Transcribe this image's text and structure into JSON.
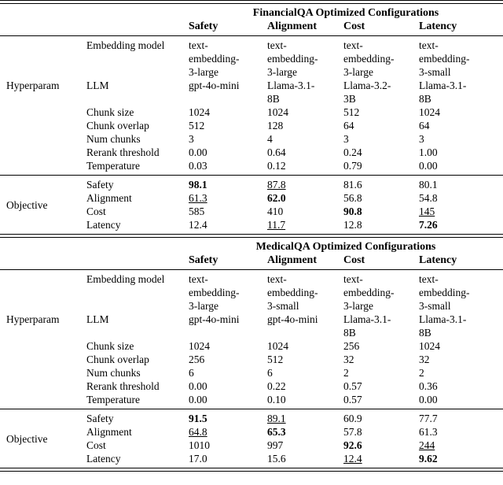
{
  "tables": [
    {
      "title": "FinancialQA Optimized Configurations",
      "columns": [
        "Safety",
        "Alignment",
        "Cost",
        "Latency"
      ],
      "group_labels": {
        "hyperparam": "Hyperparam",
        "objective": "Objective"
      },
      "hyperparams": [
        {
          "name": "Embedding model",
          "values": [
            "text-\nembedding-\n3-large",
            "text-\nembedding-\n3-large",
            "text-\nembedding-\n3-large",
            "text-\nembedding-\n3-small"
          ]
        },
        {
          "name": "LLM",
          "values": [
            "gpt-4o-mini",
            "Llama-3.1-\n8B",
            "Llama-3.2-\n3B",
            "Llama-3.1-\n8B"
          ]
        },
        {
          "name": "Chunk size",
          "values": [
            "1024",
            "1024",
            "512",
            "1024"
          ]
        },
        {
          "name": "Chunk overlap",
          "values": [
            "512",
            "128",
            "64",
            "64"
          ]
        },
        {
          "name": "Num chunks",
          "values": [
            "3",
            "4",
            "3",
            "3"
          ]
        },
        {
          "name": "Rerank threshold",
          "values": [
            "0.00",
            "0.64",
            "0.24",
            "1.00"
          ]
        },
        {
          "name": "Temperature",
          "values": [
            "0.03",
            "0.12",
            "0.79",
            "0.00"
          ]
        }
      ],
      "objectives": [
        {
          "name": "Safety",
          "values": [
            "98.1",
            "87.8",
            "81.6",
            "80.1"
          ],
          "emphasis": [
            "bold",
            "underline",
            "none",
            "none"
          ]
        },
        {
          "name": "Alignment",
          "values": [
            "61.3",
            "62.0",
            "56.8",
            "54.8"
          ],
          "emphasis": [
            "underline",
            "bold",
            "none",
            "none"
          ]
        },
        {
          "name": "Cost",
          "values": [
            "585",
            "410",
            "90.8",
            "145"
          ],
          "emphasis": [
            "none",
            "none",
            "bold",
            "underline"
          ]
        },
        {
          "name": "Latency",
          "values": [
            "12.4",
            "11.7",
            "12.8",
            "7.26"
          ],
          "emphasis": [
            "none",
            "underline",
            "none",
            "bold"
          ]
        }
      ]
    },
    {
      "title": "MedicalQA Optimized Configurations",
      "columns": [
        "Safety",
        "Alignment",
        "Cost",
        "Latency"
      ],
      "group_labels": {
        "hyperparam": "Hyperparam",
        "objective": "Objective"
      },
      "hyperparams": [
        {
          "name": "Embedding model",
          "values": [
            "text-\nembedding-\n3-large",
            "text-\nembedding-\n3-small",
            "text-\nembedding-\n3-large",
            "text-\nembedding-\n3-small"
          ]
        },
        {
          "name": "LLM",
          "values": [
            "gpt-4o-mini",
            "gpt-4o-mini",
            "Llama-3.1-\n8B",
            "Llama-3.1-\n8B"
          ]
        },
        {
          "name": "Chunk size",
          "values": [
            "1024",
            "1024",
            "256",
            "1024"
          ]
        },
        {
          "name": "Chunk overlap",
          "values": [
            "256",
            "512",
            "32",
            "32"
          ]
        },
        {
          "name": "Num chunks",
          "values": [
            "6",
            "6",
            "2",
            "2"
          ]
        },
        {
          "name": "Rerank threshold",
          "values": [
            "0.00",
            "0.22",
            "0.57",
            "0.36"
          ]
        },
        {
          "name": "Temperature",
          "values": [
            "0.00",
            "0.10",
            "0.57",
            "0.00"
          ]
        }
      ],
      "objectives": [
        {
          "name": "Safety",
          "values": [
            "91.5",
            "89.1",
            "60.9",
            "77.7"
          ],
          "emphasis": [
            "bold",
            "underline",
            "none",
            "none"
          ]
        },
        {
          "name": "Alignment",
          "values": [
            "64.8",
            "65.3",
            "57.8",
            "61.3"
          ],
          "emphasis": [
            "underline",
            "bold",
            "none",
            "none"
          ]
        },
        {
          "name": "Cost",
          "values": [
            "1010",
            "997",
            "92.6",
            "244"
          ],
          "emphasis": [
            "none",
            "none",
            "bold",
            "underline"
          ]
        },
        {
          "name": "Latency",
          "values": [
            "17.0",
            "15.6",
            "12.4",
            "9.62"
          ],
          "emphasis": [
            "none",
            "none",
            "underline",
            "bold"
          ]
        }
      ]
    }
  ]
}
